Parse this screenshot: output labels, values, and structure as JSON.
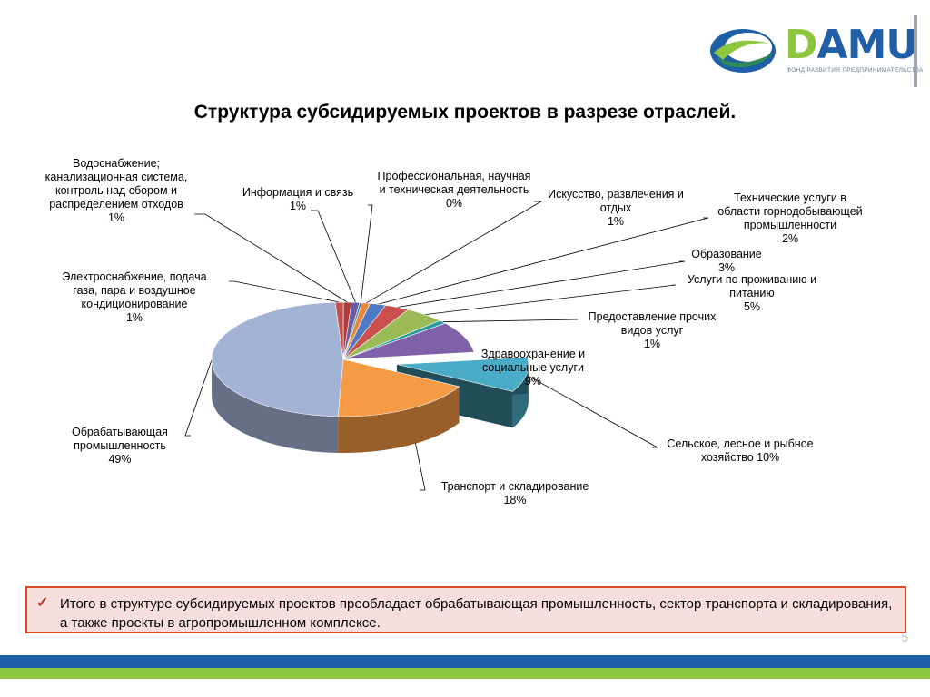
{
  "logo": {
    "brand": "DAMU",
    "subtitle": "ФОНД РАЗВИТИЯ ПРЕДПРИНИМАТЕЛЬСТВА"
  },
  "slide": {
    "title": "Структура субсидируемых проектов в разрезе отраслей.",
    "page_number": "5"
  },
  "note": {
    "text": "Итого в структуре субсидируемых проектов преобладает обрабатывающая промышленность,  сектор транспорта и складирования, а также проекты в агропромышленном комплексе."
  },
  "colors": {
    "accent_red": "#d9472b",
    "note_bg": "#f9dede",
    "bar_blue": "#1f5fa8",
    "bar_green": "#8dc63f"
  },
  "chart_data": {
    "type": "pie",
    "title": "Структура субсидируемых проектов в разрезе отраслей.",
    "unit": "%",
    "slices": [
      {
        "lines": [
          "Водоснабжение;",
          "канализационная система,",
          "контроль над сбором и",
          "распределением отходов",
          "1%"
        ],
        "value": 1,
        "color": "#b33a3a"
      },
      {
        "lines": [
          "Информация и связь",
          "1%"
        ],
        "value": 1,
        "color": "#6b5a9e"
      },
      {
        "lines": [
          "Профессиональная, научная",
          "и техническая деятельность",
          "0%"
        ],
        "value": 0,
        "color": "#3b8ab0"
      },
      {
        "lines": [
          "Искусство, развлечения и",
          "отдых",
          "1%"
        ],
        "value": 1,
        "color": "#e8883c"
      },
      {
        "lines": [
          "Технические услуги в",
          "области горнодобывающей",
          "промышленности",
          "2%"
        ],
        "value": 2,
        "color": "#4f79c2"
      },
      {
        "lines": [
          "Образование",
          "3%"
        ],
        "value": 3,
        "color": "#c9504c"
      },
      {
        "lines": [
          "Услуги по проживанию и",
          "питанию",
          "5%"
        ],
        "value": 5,
        "color": "#9bbb59"
      },
      {
        "lines": [
          "Предоставление прочих",
          "видов услуг",
          "1%"
        ],
        "value": 1,
        "color": "#2a9a9a"
      },
      {
        "lines": [
          "Здравоохранение и",
          "социальные услуги",
          "9%"
        ],
        "value": 9,
        "color": "#7e61a8"
      },
      {
        "lines": [
          "Сельское, лесное и рыбное",
          "хозяйство 10%"
        ],
        "value": 10,
        "color": "#4aacc6",
        "exploded": true
      },
      {
        "lines": [
          "Транспорт и складирование",
          "18%"
        ],
        "value": 18,
        "color": "#f59a45"
      },
      {
        "lines": [
          "Обрабатывающая",
          "промышленность",
          "49%"
        ],
        "value": 49,
        "color": "#a3b3d6"
      },
      {
        "lines": [
          "Электроснабжение, подача",
          "газа, пара и воздушное",
          "кондиционирование",
          "1%"
        ],
        "value": 1,
        "color": "#c0504d"
      }
    ]
  }
}
